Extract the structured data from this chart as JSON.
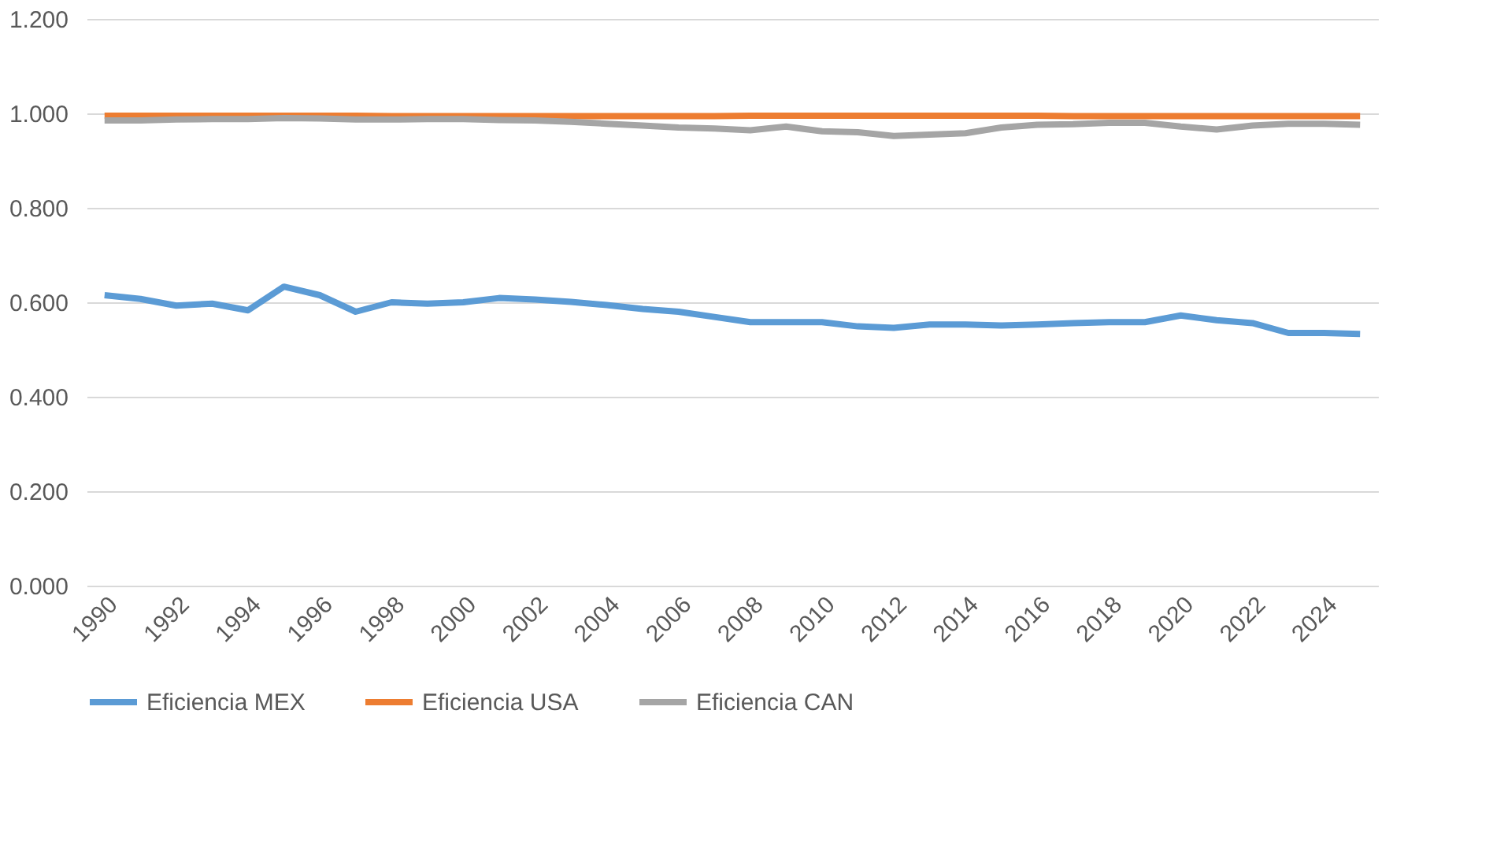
{
  "chart_data": {
    "type": "line",
    "categories": [
      "1990",
      null,
      "1992",
      null,
      "1994",
      null,
      "1996",
      null,
      "1998",
      null,
      "2000",
      null,
      "2002",
      null,
      "2004",
      null,
      "2006",
      null,
      "2008",
      null,
      "2010",
      null,
      "2012",
      null,
      "2014",
      null,
      "2016",
      null,
      "2018",
      null,
      "2020",
      null,
      "2022",
      null,
      "2024",
      null
    ],
    "series": [
      {
        "name": "Eficiencia MEX",
        "color": "#5b9bd5",
        "values": [
          0.615,
          0.607,
          0.593,
          0.597,
          0.583,
          0.633,
          0.615,
          0.58,
          0.6,
          0.597,
          0.6,
          0.609,
          0.606,
          0.601,
          0.594,
          0.586,
          0.58,
          0.569,
          0.558,
          0.558,
          0.558,
          0.549,
          0.546,
          0.553,
          0.553,
          0.551,
          0.553,
          0.556,
          0.558,
          0.558,
          0.572,
          0.562,
          0.556,
          0.535,
          0.535,
          0.533
        ]
      },
      {
        "name": "Eficiencia USA",
        "color": "#ed7d31",
        "values": [
          0.995,
          0.995,
          0.995,
          0.995,
          0.995,
          0.995,
          0.995,
          0.995,
          0.994,
          0.994,
          0.994,
          0.994,
          0.994,
          0.994,
          0.994,
          0.994,
          0.994,
          0.994,
          0.995,
          0.995,
          0.995,
          0.995,
          0.995,
          0.995,
          0.995,
          0.995,
          0.995,
          0.994,
          0.994,
          0.994,
          0.994,
          0.994,
          0.994,
          0.994,
          0.994,
          0.994
        ]
      },
      {
        "name": "Eficiencia CAN",
        "color": "#a5a5a5",
        "values": [
          0.985,
          0.985,
          0.987,
          0.988,
          0.988,
          0.99,
          0.989,
          0.987,
          0.987,
          0.988,
          0.988,
          0.986,
          0.985,
          0.982,
          0.978,
          0.974,
          0.97,
          0.968,
          0.964,
          0.972,
          0.962,
          0.96,
          0.952,
          0.955,
          0.958,
          0.97,
          0.976,
          0.977,
          0.98,
          0.98,
          0.972,
          0.966,
          0.974,
          0.978,
          0.978,
          0.976
        ]
      }
    ],
    "ylim": [
      0,
      1.2
    ],
    "yticks": [
      {
        "value": 0,
        "label": "0.000"
      },
      {
        "value": 0.2,
        "label": "0.200"
      },
      {
        "value": 0.4,
        "label": "0.400"
      },
      {
        "value": 0.6,
        "label": "0.600"
      },
      {
        "value": 0.8,
        "label": "0.800"
      },
      {
        "value": 1.0,
        "label": "1.000"
      },
      {
        "value": 1.2,
        "label": "1.200"
      }
    ],
    "grid": "y",
    "legend": "bottom",
    "marker": "none",
    "line_style": "solid"
  }
}
